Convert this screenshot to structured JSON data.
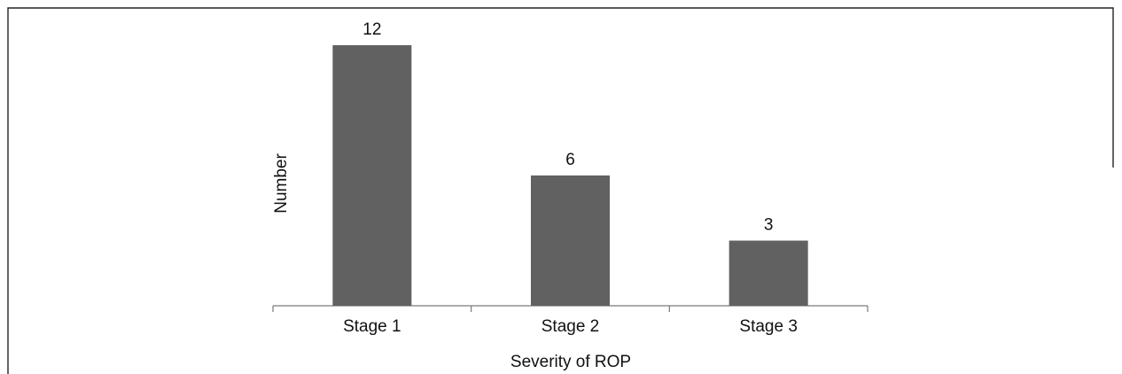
{
  "chart_data": {
    "type": "bar",
    "categories": [
      "Stage 1",
      "Stage 2",
      "Stage 3"
    ],
    "values": [
      12,
      6,
      3
    ],
    "data_labels": [
      "12",
      "6",
      "3"
    ],
    "title": "",
    "xlabel": "Severity of ROP",
    "ylabel": "Number",
    "ylim": [
      0,
      12
    ],
    "grid": false,
    "legend": "none",
    "bar_color": "#616161"
  }
}
